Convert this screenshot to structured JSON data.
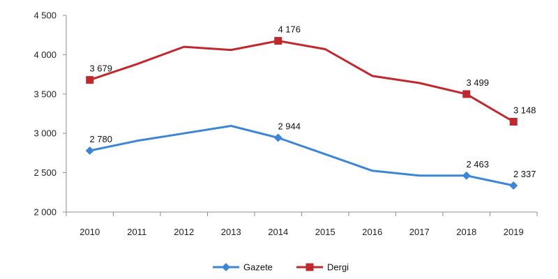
{
  "chart_data": {
    "type": "line",
    "categories": [
      "2010",
      "2011",
      "2012",
      "2013",
      "2014",
      "2015",
      "2016",
      "2017",
      "2018",
      "2019"
    ],
    "ylim": [
      2000,
      4500
    ],
    "yticks": [
      2000,
      2500,
      3000,
      3500,
      4000,
      4500
    ],
    "ytick_labels": [
      "2 000",
      "2 500",
      "3 000",
      "3 500",
      "4 000",
      "4 500"
    ],
    "grid": false,
    "legend": "bottom",
    "series": [
      {
        "name": "Gazete",
        "color": "#3d85d6",
        "marker": "diamond",
        "values": [
          2780,
          2905,
          3000,
          3095,
          2944,
          2735,
          2525,
          2463,
          2463,
          2337
        ],
        "labels": [
          {
            "index": 0,
            "text": "2 780"
          },
          {
            "index": 4,
            "text": "2 944"
          },
          {
            "index": 8,
            "text": "2 463"
          },
          {
            "index": 9,
            "text": "2 337"
          }
        ]
      },
      {
        "name": "Dergi",
        "color": "#c0282e",
        "marker": "square",
        "values": [
          3679,
          3880,
          4100,
          4060,
          4176,
          4070,
          3730,
          3640,
          3499,
          3148
        ],
        "labels": [
          {
            "index": 0,
            "text": "3 679"
          },
          {
            "index": 4,
            "text": "4 176"
          },
          {
            "index": 8,
            "text": "3 499"
          },
          {
            "index": 9,
            "text": "3 148"
          }
        ]
      }
    ]
  }
}
